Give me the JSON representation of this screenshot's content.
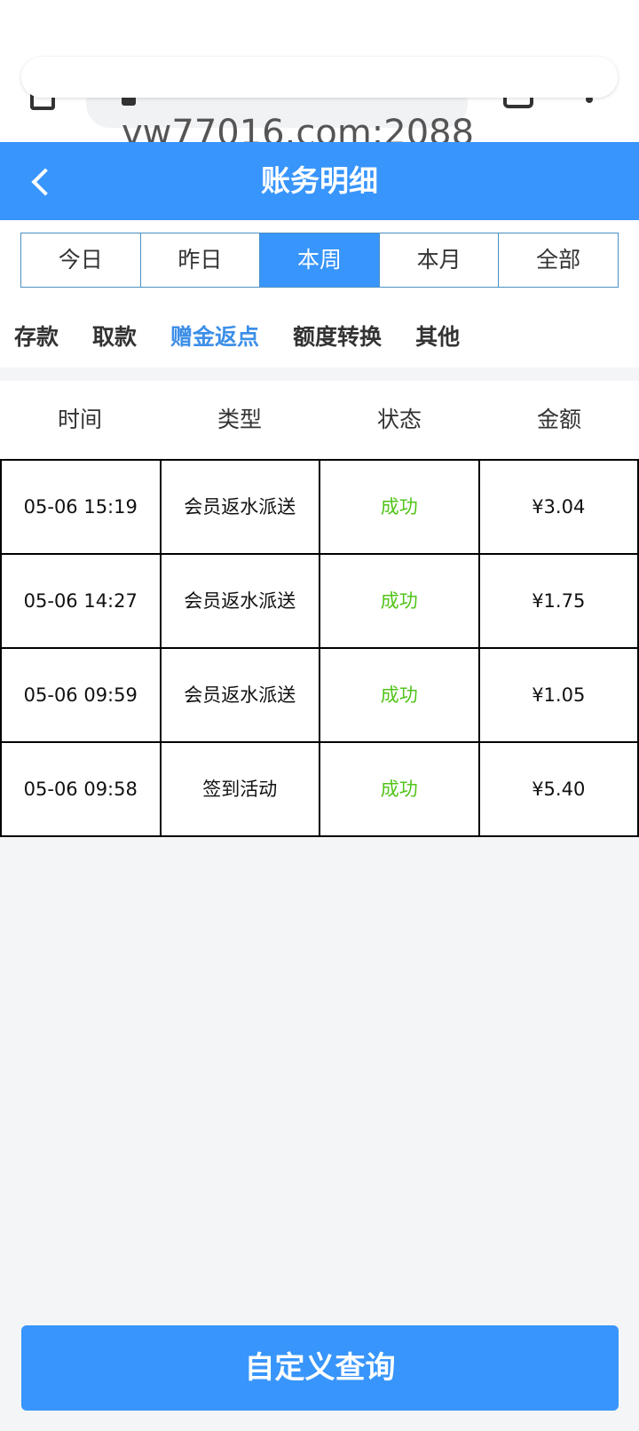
{
  "browser": {
    "url": "vw77016.com:2088"
  },
  "header": {
    "title": "账务明细"
  },
  "periods": [
    {
      "label": "今日"
    },
    {
      "label": "昨日"
    },
    {
      "label": "本周",
      "active": true
    },
    {
      "label": "本月"
    },
    {
      "label": "全部"
    }
  ],
  "categories": [
    {
      "label": "存款"
    },
    {
      "label": "取款"
    },
    {
      "label": "赠金返点",
      "active": true
    },
    {
      "label": "额度转换"
    },
    {
      "label": "其他"
    }
  ],
  "table": {
    "columns": [
      "时间",
      "类型",
      "状态",
      "金额"
    ],
    "rows": [
      [
        "05-06 15:19",
        "会员返水派送",
        "成功",
        "¥3.04"
      ],
      [
        "05-06 14:27",
        "会员返水派送",
        "成功",
        "¥1.75"
      ],
      [
        "05-06 09:59",
        "会员返水派送",
        "成功",
        "¥1.05"
      ],
      [
        "05-06 09:58",
        "签到活动",
        "成功",
        "¥5.40"
      ]
    ]
  },
  "query_button": "自定义查询",
  "colors": {
    "accent": "#3895fb",
    "success": "#52c41a"
  }
}
